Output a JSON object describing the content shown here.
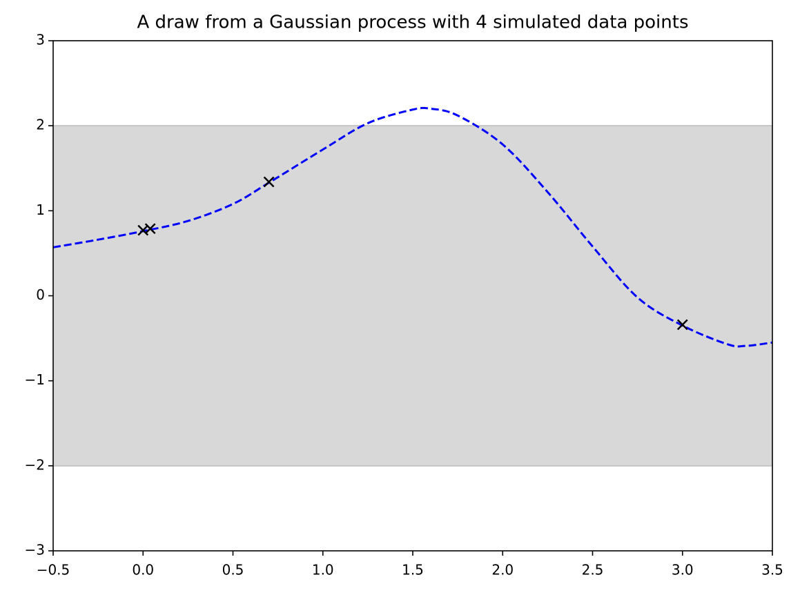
{
  "chart_data": {
    "type": "line",
    "title": "A draw from a Gaussian process with 4 simulated data points",
    "xlim": [
      -0.5,
      3.5
    ],
    "xticks": [
      {
        "value": -0.5,
        "label": "−0.5"
      },
      {
        "value": 0,
        "label": "0.0"
      },
      {
        "value": 0.5,
        "label": "0.5"
      },
      {
        "value": 1,
        "label": "1.0"
      },
      {
        "value": 1.5,
        "label": "1.5"
      },
      {
        "value": 2,
        "label": "2.0"
      },
      {
        "value": 2.5,
        "label": "2.5"
      },
      {
        "value": 3,
        "label": "3.0"
      },
      {
        "value": 3.5,
        "label": "3.5"
      }
    ],
    "ylim": [
      -3,
      3
    ],
    "yticks": [
      {
        "value": -3,
        "label": "−3"
      },
      {
        "value": -2,
        "label": "−2"
      },
      {
        "value": -1,
        "label": "−1"
      },
      0,
      1,
      2,
      3
    ],
    "band": {
      "lower": -2,
      "upper": 2,
      "color": "#d8d8d8"
    },
    "series": [
      {
        "type": "line",
        "linestyle": "dashed",
        "color": "#0000ff",
        "x": [
          -0.5,
          -0.25,
          0,
          0.25,
          0.5,
          0.7,
          1.0,
          1.25,
          1.5,
          1.6,
          1.75,
          2.0,
          2.25,
          2.5,
          2.75,
          3.0,
          3.25,
          3.35,
          3.5
        ],
        "values": [
          0.57,
          0.66,
          0.76,
          0.88,
          1.08,
          1.33,
          1.72,
          2.03,
          2.19,
          2.2,
          2.12,
          1.78,
          1.22,
          0.58,
          -0.02,
          -0.35,
          -0.57,
          -0.59,
          -0.55
        ]
      },
      {
        "type": "scatter",
        "marker": "x",
        "color": "#000000",
        "x": [
          0,
          0.04,
          0.7,
          3.0
        ],
        "values": [
          0.77,
          0.79,
          1.34,
          -0.34
        ]
      }
    ]
  }
}
